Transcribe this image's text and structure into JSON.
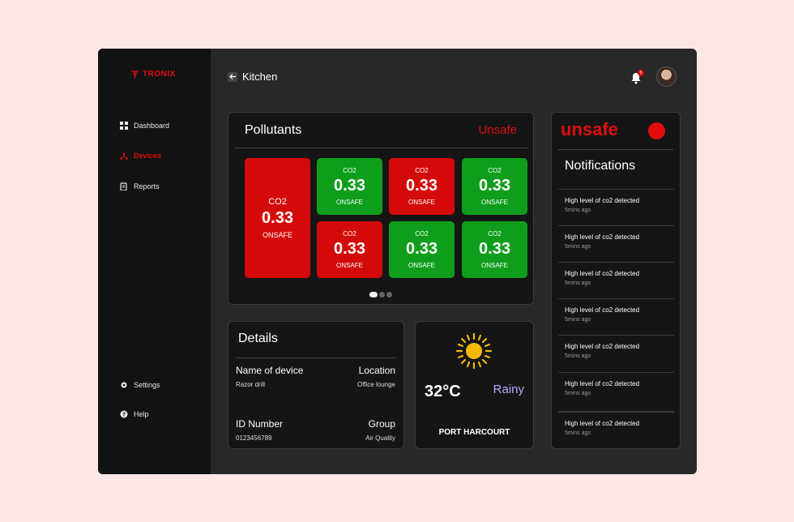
{
  "brand": {
    "name": "TRONIX",
    "color": "#e10d0d"
  },
  "sidebar": {
    "items": [
      {
        "label": "Dashboard",
        "icon": "grid-icon"
      },
      {
        "label": "Devices",
        "icon": "devices-icon",
        "active": true
      },
      {
        "label": "Reports",
        "icon": "report-icon"
      }
    ],
    "bottom": [
      {
        "label": "Settings",
        "icon": "gear-icon"
      },
      {
        "label": "Help",
        "icon": "help-icon"
      }
    ]
  },
  "header": {
    "title": "Kitchen",
    "notification_count": "6"
  },
  "pollutants": {
    "title": "Pollutants",
    "status": "Unsafe",
    "tiles": [
      {
        "name": "CO2",
        "value": "0.33",
        "status": "ONSAFE",
        "color": "#d40a0a"
      },
      {
        "name": "CO2",
        "value": "0.33",
        "status": "ONSAFE",
        "color": "#0e9e1c"
      },
      {
        "name": "CO2",
        "value": "0.33",
        "status": "ONSAFE",
        "color": "#d40a0a"
      },
      {
        "name": "CO2",
        "value": "0.33",
        "status": "ONSAFE",
        "color": "#0e9e1c"
      },
      {
        "name": "CO2",
        "value": "0.33",
        "status": "ONSAFE",
        "color": "#d40a0a"
      },
      {
        "name": "CO2",
        "value": "0.33",
        "status": "ONSAFE",
        "color": "#0e9e1c"
      },
      {
        "name": "CO2",
        "value": "0.33",
        "status": "ONSAFE",
        "color": "#0e9e1c"
      }
    ]
  },
  "details": {
    "title": "Details",
    "name_label": "Name of device",
    "name_value": "Razor drill",
    "location_label": "Location",
    "location_value": "Office lounge",
    "id_label": "ID Number",
    "id_value": "0123456789",
    "group_label": "Group",
    "group_value": "Air Quality"
  },
  "weather": {
    "temp": "32°C",
    "condition": "Rainy",
    "city": "PORT HARCOURT",
    "icon": "sun-icon"
  },
  "notifications": {
    "status": "unsafe",
    "title": "Notifications",
    "items": [
      {
        "text": "High level of co2 detected",
        "time": "5mins ago"
      },
      {
        "text": "High level of co2 detected",
        "time": "5mins ago"
      },
      {
        "text": "High level of co2 detected",
        "time": "5mins ago"
      },
      {
        "text": "High level of co2 detected",
        "time": "5mins ago"
      },
      {
        "text": "High level of co2 detected",
        "time": "5mins ago"
      },
      {
        "text": "High level of co2 detected",
        "time": "5mins ago"
      },
      {
        "text": "High level of co2 detected",
        "time": "5mins ago"
      }
    ]
  }
}
